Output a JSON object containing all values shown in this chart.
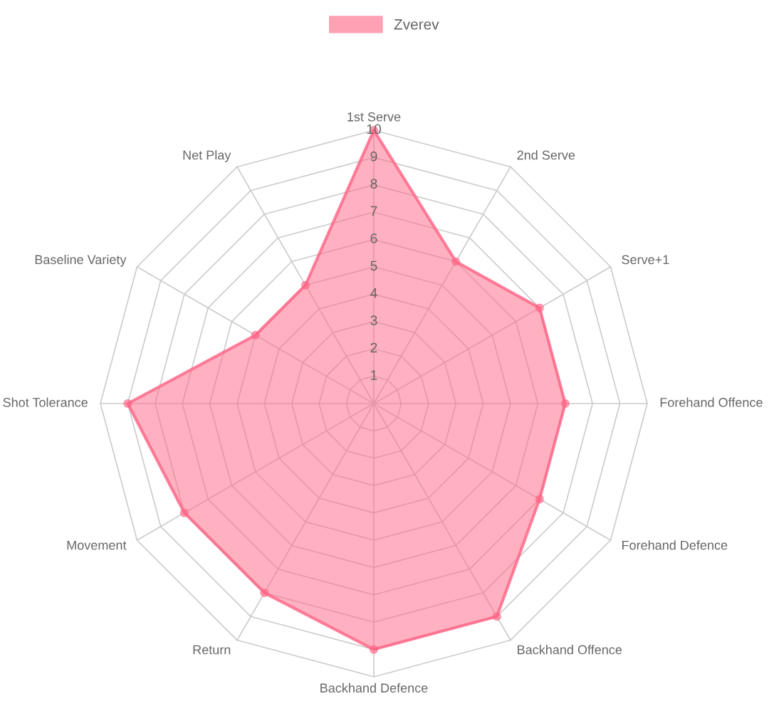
{
  "chart_data": {
    "type": "radar",
    "categories": [
      "1st Serve",
      "2nd Serve",
      "Serve+1",
      "Forehand Offence",
      "Forehand Defence",
      "Backhand Offence",
      "Backhand Defence",
      "Return",
      "Movement",
      "Shot Tolerance",
      "Baseline Variety",
      "Net Play"
    ],
    "series": [
      {
        "name": "Zverev",
        "color": "#ff6384",
        "values": [
          10,
          6,
          7,
          7,
          7,
          9,
          9,
          8,
          8,
          9,
          5,
          5
        ]
      }
    ],
    "ylim": [
      0,
      10
    ],
    "yticks": [
      1,
      2,
      3,
      4,
      5,
      6,
      7,
      8,
      9,
      10
    ],
    "grid": true,
    "legend": "top",
    "marker": "circle"
  }
}
